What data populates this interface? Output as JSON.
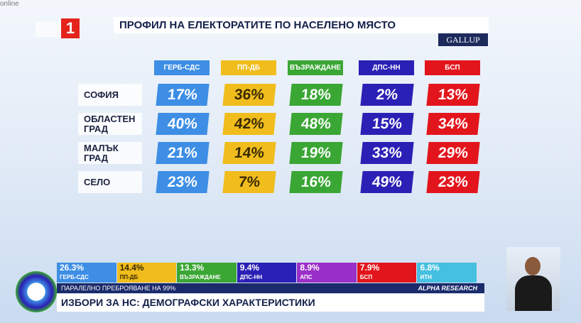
{
  "header": {
    "channel": "1",
    "corner": "online",
    "title": "ПРОФИЛ НА ЕЛЕКТОРАТИТЕ ПО НАСЕЛЕНО МЯСТО",
    "logo": "GALLUP"
  },
  "table": {
    "columns": [
      {
        "name": "ГЕРБ-СДС",
        "color": "#3d8ee4"
      },
      {
        "name": "ПП-ДБ",
        "color": "#f0bd1c"
      },
      {
        "name": "ВЪЗРАЖДАНЕ",
        "color": "#3aa634"
      },
      {
        "name": "ДПС-НН",
        "color": "#2b20b5"
      },
      {
        "name": "БСП",
        "color": "#e3151c"
      }
    ],
    "rows": [
      {
        "label": "СОФИЯ",
        "values": [
          "17%",
          "36%",
          "18%",
          "2%",
          "13%"
        ]
      },
      {
        "label": "ОБЛАСТЕН ГРАД",
        "values": [
          "40%",
          "42%",
          "48%",
          "15%",
          "34%"
        ]
      },
      {
        "label": "МАЛЪК ГРАД",
        "values": [
          "21%",
          "14%",
          "19%",
          "33%",
          "29%"
        ]
      },
      {
        "label": "СЕЛО",
        "values": [
          "23%",
          "7%",
          "16%",
          "49%",
          "23%"
        ]
      }
    ]
  },
  "ticker": {
    "results": [
      {
        "value": "26.3%",
        "party": "ГЕРБ-СДС",
        "color": "#3d8ee4"
      },
      {
        "value": "14.4%",
        "party": "ПП-ДБ",
        "color": "#f0bd1c"
      },
      {
        "value": "13.3%",
        "party": "ВЪЗРАЖДАНЕ",
        "color": "#3aa634"
      },
      {
        "value": "9.4%",
        "party": "ДПС-НН",
        "color": "#2b20b5"
      },
      {
        "value": "8.9%",
        "party": "АПС",
        "color": "#9b2fc9"
      },
      {
        "value": "7.9%",
        "party": "БСП",
        "color": "#e3151c"
      },
      {
        "value": "6.8%",
        "party": "ИТН",
        "color": "#46c0e0"
      }
    ],
    "note": "ПАРАЛЕЛНО ПРЕБРОЯВАНЕ НА 99%",
    "source": "ALPHA RESEARCH",
    "headline": "ИЗБОРИ ЗА НС: ДЕМОГРАФСКИ ХАРАКТЕРИСТИКИ"
  }
}
